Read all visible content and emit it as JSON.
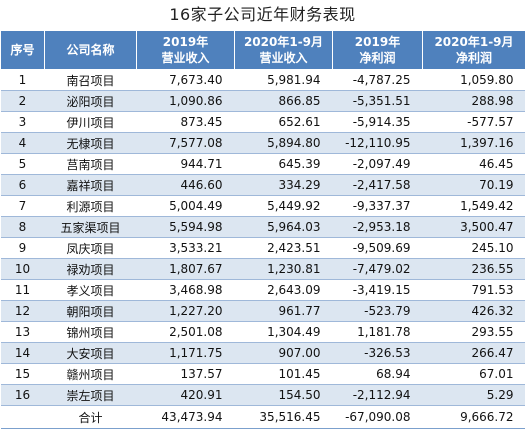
{
  "title": "16家子公司近年财务表现",
  "headers": {
    "index": "序号",
    "company": "公司名称",
    "rev2019": [
      "2019年",
      "营业收入"
    ],
    "rev2020": [
      "2020年1-9月",
      "营业收入"
    ],
    "np2019": [
      "2019年",
      "净利润"
    ],
    "np2020": [
      "2020年1-9月",
      "净利润"
    ]
  },
  "rows": [
    {
      "idx": "1",
      "name": "南召项目",
      "rev2019": "7,673.40",
      "rev2020": "5,981.94",
      "np2019": "-4,787.25",
      "np2020": "1,059.80"
    },
    {
      "idx": "2",
      "name": "泌阳项目",
      "rev2019": "1,090.86",
      "rev2020": "866.85",
      "np2019": "-5,351.51",
      "np2020": "288.98"
    },
    {
      "idx": "3",
      "name": "伊川项目",
      "rev2019": "873.45",
      "rev2020": "652.61",
      "np2019": "-5,914.35",
      "np2020": "-577.57"
    },
    {
      "idx": "4",
      "name": "无棣项目",
      "rev2019": "7,577.08",
      "rev2020": "5,894.80",
      "np2019": "-12,110.95",
      "np2020": "1,397.16"
    },
    {
      "idx": "5",
      "name": "莒南项目",
      "rev2019": "944.71",
      "rev2020": "645.39",
      "np2019": "-2,097.49",
      "np2020": "46.45"
    },
    {
      "idx": "6",
      "name": "嘉祥项目",
      "rev2019": "446.60",
      "rev2020": "334.29",
      "np2019": "-2,417.58",
      "np2020": "70.19"
    },
    {
      "idx": "7",
      "name": "利源项目",
      "rev2019": "5,004.49",
      "rev2020": "5,449.92",
      "np2019": "-9,337.37",
      "np2020": "1,549.42"
    },
    {
      "idx": "8",
      "name": "五家渠项目",
      "rev2019": "5,594.98",
      "rev2020": "5,964.03",
      "np2019": "-2,953.18",
      "np2020": "3,500.47"
    },
    {
      "idx": "9",
      "name": "凤庆项目",
      "rev2019": "3,533.21",
      "rev2020": "2,423.51",
      "np2019": "-9,509.69",
      "np2020": "245.10"
    },
    {
      "idx": "10",
      "name": "禄劝项目",
      "rev2019": "1,807.67",
      "rev2020": "1,230.81",
      "np2019": "-7,479.02",
      "np2020": "236.55"
    },
    {
      "idx": "11",
      "name": "孝义项目",
      "rev2019": "3,468.98",
      "rev2020": "2,643.09",
      "np2019": "-3,419.15",
      "np2020": "791.53"
    },
    {
      "idx": "12",
      "name": "朝阳项目",
      "rev2019": "1,227.20",
      "rev2020": "961.77",
      "np2019": "-523.79",
      "np2020": "426.32"
    },
    {
      "idx": "13",
      "name": "锦州项目",
      "rev2019": "2,501.08",
      "rev2020": "1,304.49",
      "np2019": "1,181.78",
      "np2020": "293.55"
    },
    {
      "idx": "14",
      "name": "大安项目",
      "rev2019": "1,171.75",
      "rev2020": "907.00",
      "np2019": "-326.53",
      "np2020": "266.47"
    },
    {
      "idx": "15",
      "name": "赣州项目",
      "rev2019": "137.57",
      "rev2020": "101.45",
      "np2019": "68.94",
      "np2020": "67.01"
    },
    {
      "idx": "16",
      "name": "崇左项目",
      "rev2019": "420.91",
      "rev2020": "154.50",
      "np2019": "-2,112.94",
      "np2020": "5.29"
    }
  ],
  "total": {
    "label": "合计",
    "rev2019": "43,473.94",
    "rev2020": "35,516.45",
    "np2019": "-67,090.08",
    "np2020": "9,666.72"
  },
  "colors": {
    "header_bg": "#4f81bd",
    "band": "#dce6f1",
    "rule": "#9fb8d9"
  }
}
